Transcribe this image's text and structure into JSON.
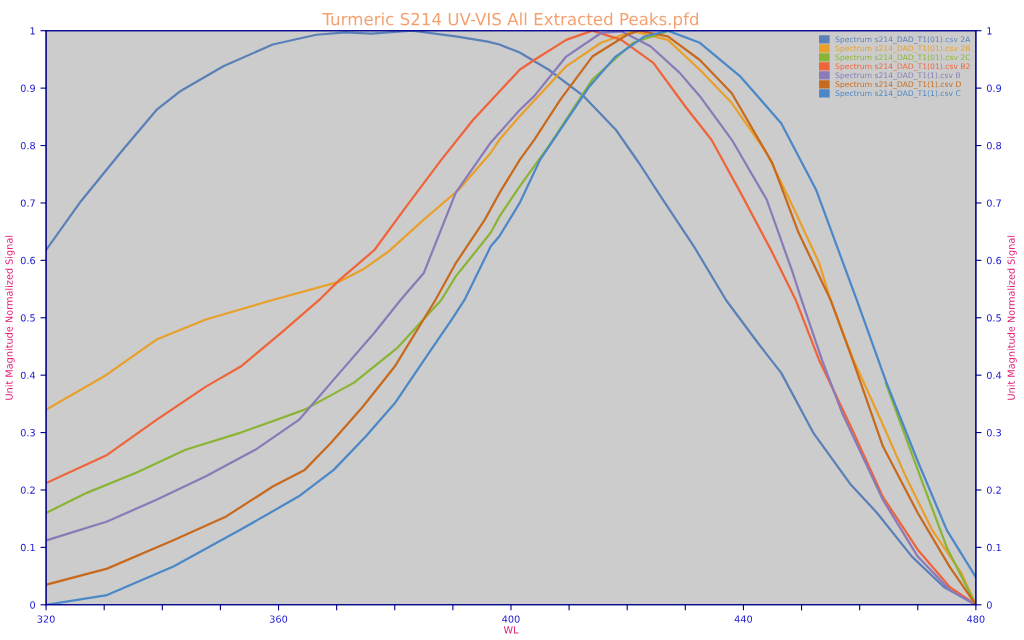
{
  "chart_data": {
    "type": "line",
    "title": "Turmeric S214 UV-VIS All Extracted Peaks.pfd",
    "xlabel": "WL",
    "ylabel": "Unit Magnitude Normalized Signal",
    "y2label": "Unit Magnitude Normalized Signal",
    "xlim": [
      320,
      480
    ],
    "xticks": [
      320,
      {
        "value": 330,
        "label": null
      },
      {
        "value": 340,
        "label": null
      },
      {
        "value": 350,
        "label": null
      },
      360,
      {
        "value": 370,
        "label": null
      },
      {
        "value": 380,
        "label": null
      },
      {
        "value": 390,
        "label": null
      },
      400,
      {
        "value": 410,
        "label": null
      },
      {
        "value": 420,
        "label": null
      },
      {
        "value": 430,
        "label": null
      },
      440,
      {
        "value": 450,
        "label": null
      },
      {
        "value": 460,
        "label": null
      },
      {
        "value": 470,
        "label": null
      },
      480
    ],
    "ylim": [
      0,
      1
    ],
    "yticks": [
      0,
      0.1,
      0.2,
      0.3,
      0.4,
      0.5,
      0.6,
      0.7,
      0.8,
      0.9,
      1
    ],
    "y2lim": [
      0,
      1
    ],
    "y2ticks": [
      0,
      0.1,
      0.2,
      0.3,
      0.4,
      0.5,
      0.6,
      0.7,
      0.8,
      0.9,
      1
    ],
    "grid": false,
    "legend": "top right",
    "marker": "none",
    "line_style": "solid",
    "series": [
      {
        "name": "Spectrum s214_DAD_T1(01).csv 2A",
        "color": "#5b80b8",
        "x": [
          320,
          326,
          333,
          339,
          343,
          350.5,
          359,
          366.5,
          371.5,
          376,
          383,
          390.5,
          396,
          398,
          401.5,
          406.5,
          412.5,
          418,
          422,
          426.5,
          431.5,
          437,
          442.5,
          446.5,
          452,
          458.5,
          463,
          469,
          474.5,
          480
        ],
        "values": [
          0.618,
          0.703,
          0.79,
          0.862,
          0.894,
          0.938,
          0.976,
          0.993,
          0.997,
          0.995,
          1.0,
          0.99,
          0.981,
          0.976,
          0.962,
          0.932,
          0.886,
          0.828,
          0.77,
          0.7,
          0.624,
          0.531,
          0.456,
          0.404,
          0.3,
          0.209,
          0.16,
          0.084,
          0.031,
          0
        ]
      },
      {
        "name": "Spectrum s214_DAD_T1(01).csv 2B",
        "color": "#e8a02a",
        "x": [
          320,
          330,
          339,
          347.5,
          359,
          370.5,
          374.5,
          379,
          385,
          391,
          396.5,
          398,
          401.5,
          409.5,
          415.5,
          421,
          427,
          432.5,
          438,
          444,
          448.5,
          453,
          455,
          459,
          463.5,
          468,
          472.5,
          477.5,
          480
        ],
        "values": [
          0.34,
          0.398,
          0.462,
          0.497,
          0.531,
          0.563,
          0.584,
          0.616,
          0.671,
          0.723,
          0.787,
          0.81,
          0.851,
          0.938,
          0.979,
          0.999,
          0.984,
          0.932,
          0.874,
          0.787,
          0.694,
          0.596,
          0.531,
          0.425,
          0.325,
          0.222,
          0.13,
          0.055,
          0
        ]
      },
      {
        "name": "Spectrum s214_DAD_T1(01).csv 2C",
        "color": "#8ab534",
        "x": [
          320,
          327,
          335.5,
          344,
          353.5,
          364.5,
          373,
          380.5,
          388,
          390.5,
          396.5,
          398,
          401.5,
          406.5,
          414,
          421,
          427,
          432.5,
          439.5,
          446.5,
          452.5,
          459.5,
          464.5,
          470,
          475,
          480
        ],
        "values": [
          0.16,
          0.195,
          0.23,
          0.27,
          0.3,
          0.34,
          0.387,
          0.448,
          0.531,
          0.572,
          0.648,
          0.676,
          0.729,
          0.799,
          0.915,
          0.979,
          0.999,
          null,
          null,
          null,
          null,
          null,
          0.386,
          0.235,
          0.1,
          0
        ]
      },
      {
        "name": "Spectrum s214_DAD_T1(01).csv B2",
        "color": "#f0643a",
        "x": [
          320,
          330.5,
          339,
          347.5,
          353.5,
          360.5,
          367,
          370.5,
          376.5,
          382,
          388,
          393.5,
          401.5,
          404,
          409.5,
          414,
          419,
          424.5,
          430,
          434.5,
          439.5,
          445,
          449,
          453,
          458.5,
          464,
          470,
          475.5,
          480
        ],
        "values": [
          0.212,
          0.261,
          0.322,
          0.38,
          0.415,
          0.474,
          0.531,
          0.566,
          0.618,
          0.694,
          0.775,
          0.845,
          0.932,
          0.949,
          0.984,
          1.0,
          0.984,
          0.944,
          0.868,
          0.81,
          0.718,
          0.613,
          0.531,
          0.427,
          0.31,
          0.188,
          0.096,
          0.031,
          0
        ]
      },
      {
        "name": "Spectrum s214_DAD_T1(1).csv B",
        "color": "#8a7ab8",
        "x": [
          320,
          330.5,
          339,
          347.5,
          356,
          363.5,
          370.5,
          376.5,
          381,
          385,
          390.5,
          396.5,
          401.5,
          404,
          409.5,
          415.5,
          419,
          424,
          429,
          432.5,
          438,
          444,
          448.5,
          450,
          453.5,
          457,
          464,
          470,
          475.5,
          480
        ],
        "values": [
          0.112,
          0.145,
          0.183,
          0.224,
          0.27,
          0.322,
          0.404,
          0.474,
          0.531,
          0.578,
          0.718,
          0.805,
          0.862,
          0.886,
          0.955,
          0.996,
          0.999,
          0.973,
          0.927,
          0.886,
          0.81,
          0.706,
          0.578,
          0.531,
          0.427,
          0.334,
          0.183,
          0.084,
          0.026,
          0
        ]
      },
      {
        "name": "Spectrum s214_DAD_T1(1).csv D",
        "color": "#c86a1e",
        "x": [
          320,
          330.5,
          342,
          351,
          359,
          364.5,
          369,
          374.5,
          380,
          387,
          390.5,
          395.5,
          398,
          401.5,
          404,
          408.5,
          414,
          420,
          422,
          427,
          432.5,
          438,
          445,
          449.5,
          455,
          459,
          464,
          470,
          475.5,
          480
        ],
        "values": [
          0.035,
          0.063,
          0.113,
          0.154,
          0.206,
          0.235,
          0.282,
          0.345,
          0.415,
          0.531,
          0.595,
          0.671,
          0.717,
          0.775,
          0.81,
          0.88,
          0.955,
          0.993,
          1.0,
          0.99,
          0.949,
          0.891,
          0.769,
          0.648,
          0.531,
          0.421,
          0.276,
          0.16,
          0.066,
          0
        ]
      },
      {
        "name": "Spectrum s214_DAD_T1(1).csv C",
        "color": "#4a88c8",
        "x": [
          320,
          330.5,
          342,
          353.5,
          363.5,
          369.5,
          375,
          380,
          385.5,
          390,
          392,
          396.5,
          398,
          401.5,
          405,
          413.5,
          418,
          423,
          427,
          432.5,
          439.5,
          446.5,
          452.5,
          459.5,
          464.5,
          470,
          475,
          480
        ],
        "values": [
          0,
          0.017,
          0.067,
          0.131,
          0.189,
          0.235,
          0.293,
          0.351,
          0.433,
          0.5,
          0.531,
          0.624,
          0.642,
          0.7,
          0.775,
          0.903,
          0.955,
          0.99,
          1.0,
          0.979,
          0.92,
          0.839,
          0.723,
          0.531,
          0.39,
          0.25,
          0.13,
          0.048
        ]
      }
    ]
  }
}
